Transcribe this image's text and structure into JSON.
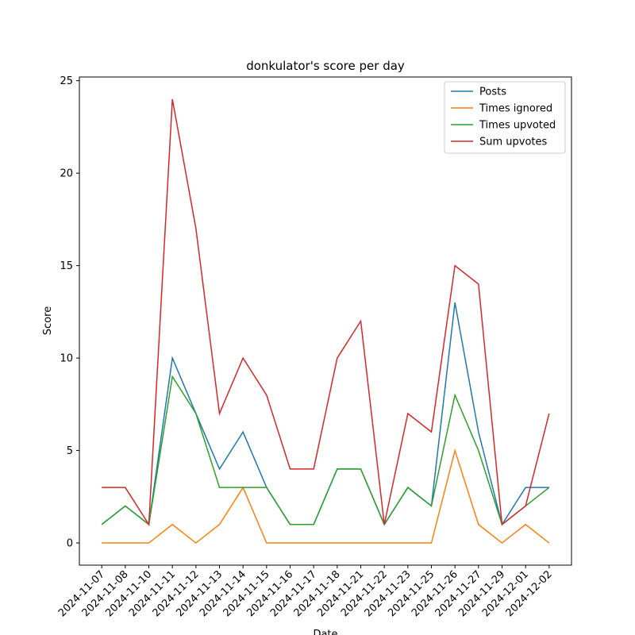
{
  "chart_data": {
    "type": "line",
    "title": "donkulator's score per day",
    "xlabel": "Date",
    "ylabel": "Score",
    "categories": [
      "2024-11-07",
      "2024-11-08",
      "2024-11-10",
      "2024-11-11",
      "2024-11-12",
      "2024-11-13",
      "2024-11-14",
      "2024-11-15",
      "2024-11-16",
      "2024-11-17",
      "2024-11-18",
      "2024-11-21",
      "2024-11-22",
      "2024-11-23",
      "2024-11-25",
      "2024-11-26",
      "2024-11-27",
      "2024-11-29",
      "2024-12-01",
      "2024-12-02"
    ],
    "series": [
      {
        "name": "Posts",
        "color": "#1f77b4",
        "values": [
          1,
          2,
          1,
          10,
          7,
          4,
          6,
          3,
          1,
          1,
          4,
          4,
          1,
          3,
          2,
          13,
          6,
          1,
          3,
          3
        ]
      },
      {
        "name": "Times ignored",
        "color": "#ff7f0e",
        "values": [
          0,
          0,
          0,
          1,
          0,
          1,
          3,
          0,
          0,
          0,
          0,
          0,
          0,
          0,
          0,
          5,
          1,
          0,
          1,
          0
        ]
      },
      {
        "name": "Times upvoted",
        "color": "#2ca02c",
        "values": [
          1,
          2,
          1,
          9,
          7,
          3,
          3,
          3,
          1,
          1,
          4,
          4,
          1,
          3,
          2,
          8,
          5,
          1,
          2,
          3
        ]
      },
      {
        "name": "Sum upvotes",
        "color": "#d62728",
        "values": [
          3,
          3,
          1,
          24,
          17,
          7,
          10,
          8,
          4,
          4,
          10,
          12,
          1,
          7,
          6,
          15,
          14,
          1,
          2,
          7
        ]
      }
    ],
    "ylim": [
      -1.2,
      25.2
    ],
    "yticks": [
      0,
      5,
      10,
      15,
      20,
      25
    ],
    "legend": "upper right",
    "grid": false
  }
}
